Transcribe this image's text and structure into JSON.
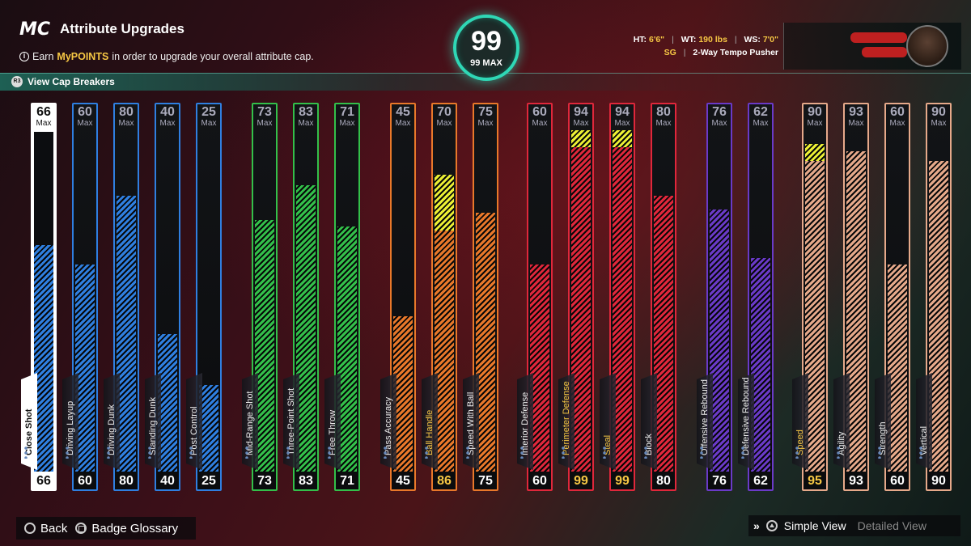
{
  "header": {
    "logo": "MC",
    "title": "Attribute Upgrades",
    "subtitle_pre": "Earn",
    "subtitle_highlight": "MyPOINTS",
    "subtitle_post": "in order to upgrade your overall attribute cap.",
    "cap_breakers_label": "View Cap Breakers",
    "cap_breakers_button_glyph": "R3"
  },
  "overall": {
    "value": "99",
    "max_label": "99 MAX"
  },
  "player": {
    "ht_label": "HT:",
    "ht_value": "6'6\"",
    "wt_label": "WT:",
    "wt_value": "190 lbs",
    "ws_label": "WS:",
    "ws_value": "7'0\"",
    "position": "SG",
    "archetype": "2-Way Tempo Pusher"
  },
  "max_label": "Max",
  "colors": {
    "finishing": "#2f7fe0",
    "shooting": "#33c04a",
    "playmaking": "#e9782a",
    "defense": "#e0273b",
    "rebounding": "#6a3ac8",
    "physicals": "#e6a98a",
    "boost": "#ecf034",
    "overall_ring": "#2fd7b5"
  },
  "attributes": [
    {
      "label": "Close Shot",
      "group": "finishing",
      "value": 66,
      "cap": 66,
      "selected": true
    },
    {
      "label": "Driving Layup",
      "group": "finishing",
      "value": 60,
      "cap": 60
    },
    {
      "label": "Driving Dunk",
      "group": "finishing",
      "value": 80,
      "cap": 80
    },
    {
      "label": "Standing Dunk",
      "group": "finishing",
      "value": 40,
      "cap": 40
    },
    {
      "label": "Post Control",
      "group": "finishing",
      "value": 25,
      "cap": 25
    },
    {
      "label": "Mid-Range Shot",
      "group": "shooting",
      "value": 73,
      "cap": 73
    },
    {
      "label": "Three-Point Shot",
      "group": "shooting",
      "value": 83,
      "cap": 83
    },
    {
      "label": "Free Throw",
      "group": "shooting",
      "value": 71,
      "cap": 71
    },
    {
      "label": "Pass Accuracy",
      "group": "playmaking",
      "value": 45,
      "cap": 45
    },
    {
      "label": "Ball Handle",
      "group": "playmaking",
      "value": 86,
      "cap": 70,
      "boosted": true
    },
    {
      "label": "Speed With Ball",
      "group": "playmaking",
      "value": 75,
      "cap": 75
    },
    {
      "label": "Interior Defense",
      "group": "defense",
      "value": 60,
      "cap": 60
    },
    {
      "label": "Perimeter Defense",
      "group": "defense",
      "value": 99,
      "cap": 94,
      "boosted": true
    },
    {
      "label": "Steal",
      "group": "defense",
      "value": 99,
      "cap": 94,
      "boosted": true
    },
    {
      "label": "Block",
      "group": "defense",
      "value": 80,
      "cap": 80
    },
    {
      "label": "Offensive Rebound",
      "group": "rebounding",
      "value": 76,
      "cap": 76
    },
    {
      "label": "Defensive Rebound",
      "group": "rebounding",
      "value": 62,
      "cap": 62
    },
    {
      "label": "Speed",
      "group": "physicals",
      "value": 95,
      "cap": 90,
      "boosted": true
    },
    {
      "label": "Agility",
      "group": "physicals",
      "value": 93,
      "cap": 93
    },
    {
      "label": "Strength",
      "group": "physicals",
      "value": 60,
      "cap": 60
    },
    {
      "label": "Vertical",
      "group": "physicals",
      "value": 90,
      "cap": 90
    }
  ],
  "footer": {
    "back_label": "Back",
    "glossary_label": "Badge Glossary",
    "simple_view_label": "Simple View",
    "detailed_view_label": "Detailed View"
  }
}
